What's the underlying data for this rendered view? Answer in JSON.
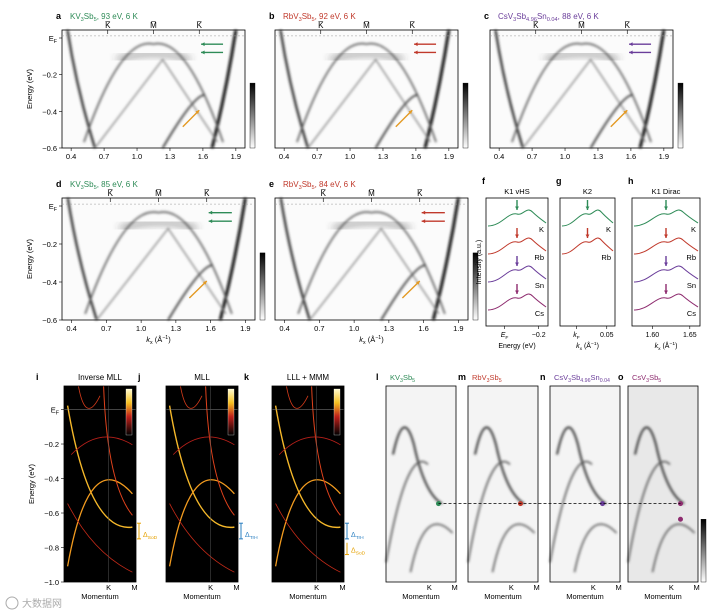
{
  "panels_top": [
    {
      "letter": "a",
      "title_parts": [
        "KV",
        "3",
        "Sb",
        "5",
        ", 93 eV, 6 K"
      ],
      "title_color": "#2e8b57",
      "xticks": [
        "0.4",
        "0.7",
        "1.0",
        "1.3",
        "1.6",
        "1.9"
      ],
      "kpoints": [
        "K̅",
        "M̅",
        "K̅"
      ],
      "arrow_color": "#2e8b57"
    },
    {
      "letter": "b",
      "title_parts": [
        "RbV",
        "3",
        "Sb",
        "5",
        ", 92 eV, 6 K"
      ],
      "title_color": "#c0392b",
      "xticks": [
        "0.4",
        "0.7",
        "1.0",
        "1.3",
        "1.6",
        "1.9"
      ],
      "kpoints": [
        "K̅",
        "M̅",
        "K̅"
      ],
      "arrow_color": "#c0392b"
    },
    {
      "letter": "c",
      "title_parts": [
        "CsV",
        "3",
        "Sb",
        "4.96",
        "Sn",
        "0.04",
        ", 88 eV, 6 K"
      ],
      "title_color": "#6a3d9a",
      "xticks": [
        "0.4",
        "0.7",
        "1.0",
        "1.3",
        "1.6",
        "1.9"
      ],
      "kpoints": [
        "K̅",
        "M̅",
        "K̅"
      ],
      "arrow_color": "#6a3d9a"
    }
  ],
  "panels_mid": [
    {
      "letter": "d",
      "title_parts": [
        "KV",
        "3",
        "Sb",
        "5",
        ", 85 eV, 6 K"
      ],
      "title_color": "#2e8b57",
      "xticks": [
        "0.4",
        "0.7",
        "1.0",
        "1.3",
        "1.6",
        "1.9"
      ],
      "kpoints": [
        "K̅",
        "M̅",
        "K̅"
      ],
      "arrow_color": "#2e8b57"
    },
    {
      "letter": "e",
      "title_parts": [
        "RbV",
        "3",
        "Sb",
        "5",
        ", 84 eV, 6 K"
      ],
      "title_color": "#c0392b",
      "xticks": [
        "0.4",
        "0.7",
        "1.0",
        "1.3",
        "1.6",
        "1.9"
      ],
      "kpoints": [
        "K̅",
        "M̅",
        "K̅"
      ],
      "arrow_color": "#c0392b"
    }
  ],
  "energy_axis": {
    "label": "Energy (eV)",
    "ticks": [
      "E",
      "−0.2",
      "−0.4",
      "−0.6"
    ],
    "ef_sub": "F"
  },
  "kx_label_parts": [
    "k",
    "x",
    " (Å",
    "−1",
    ")"
  ],
  "edc": {
    "ylabel": "Intensity (a.u.)",
    "panels": [
      {
        "letter": "f",
        "title": "K1 vHS",
        "xticks": [
          "E",
          "−0.2"
        ],
        "xsub": "F",
        "xlabel": "Energy (eV)",
        "labels": [
          "K",
          "Rb",
          "Sn",
          "Cs"
        ]
      },
      {
        "letter": "g",
        "title": "K2",
        "xticks": [
          "k",
          "0.05"
        ],
        "xsub": "F",
        "xlabel_parts": [
          "k",
          "x",
          " (Å",
          "−1",
          ")"
        ],
        "labels": [
          "K",
          "Rb"
        ]
      },
      {
        "letter": "h",
        "title": "K1 Dirac",
        "xticks": [
          "1.60",
          "1.65"
        ],
        "xlabel_parts": [
          "k",
          "x",
          " (Å",
          "−1",
          ")"
        ],
        "labels": [
          "K",
          "Rb",
          "Sn",
          "Cs"
        ]
      }
    ],
    "colors": [
      "#2e8b57",
      "#c0392b",
      "#6a3d9a",
      "#8e2c6f"
    ]
  },
  "calc": [
    {
      "letter": "i",
      "title": "Inverse MLL",
      "gap_label": "Δ",
      "gap_sub": "SoD",
      "gap_color": "#e6a100"
    },
    {
      "letter": "j",
      "title": "MLL",
      "gap_label": "Δ",
      "gap_sub": "TrH",
      "gap_color": "#2a7fc1"
    },
    {
      "letter": "k",
      "title": "LLL + MMM",
      "gap_label": "Δ",
      "gap_sub": "TrH",
      "gap_label2": "Δ",
      "gap_sub2": "SoD",
      "gap_color": "#2a7fc1",
      "gap_color2": "#e6a100"
    }
  ],
  "calc_axis": {
    "yticks": [
      "E",
      "−0.2",
      "−0.4",
      "−0.6",
      "−0.8",
      "−1.0"
    ],
    "ef_sub": "F",
    "ylabel": "Energy (eV)",
    "xticks": [
      "K",
      "M"
    ],
    "xlabel": "Momentum"
  },
  "exp": [
    {
      "letter": "l",
      "title_parts": [
        "KV",
        "3",
        "Sb",
        "5"
      ],
      "color": "#2e8b57"
    },
    {
      "letter": "m",
      "title_parts": [
        "RbV",
        "3",
        "Sb",
        "5"
      ],
      "color": "#c0392b"
    },
    {
      "letter": "n",
      "title_parts": [
        "CsV",
        "3",
        "Sb",
        "4.96",
        "Sn",
        "0.04"
      ],
      "color": "#6a3d9a"
    },
    {
      "letter": "o",
      "title_parts": [
        "CsV",
        "3",
        "Sb",
        "5"
      ],
      "color": "#8e2c6f"
    }
  ],
  "exp_axis": {
    "xticks": [
      "K",
      "M"
    ],
    "xlabel": "Momentum"
  },
  "watermark": "大数据网"
}
